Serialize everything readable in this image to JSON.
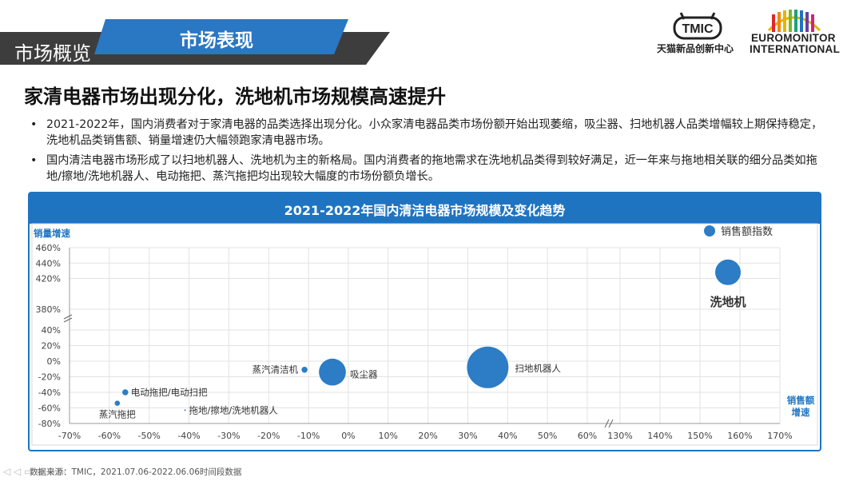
{
  "header": {
    "section_label": "市场概览",
    "tab_label": "市场表现",
    "logo_tmic_text": "TMIC",
    "logo_tmic_sub": "天猫新品创新中心",
    "logo_euro_line1": "EUROMONITOR",
    "logo_euro_line2": "INTERNATIONAL",
    "blue": "#2a77c3",
    "gray": "#3d3d3d"
  },
  "headline": "家清电器市场出现分化，洗地机市场规模高速提升",
  "bullets": [
    "2021-2022年，国内消费者对于家清电器的品类选择出现分化。小众家清电器品类市场份额开始出现萎缩，吸尘器、扫地机器人品类增幅较上期保持稳定，洗地机品类销售额、销量增速仍大幅领跑家清电器市场。",
    "国内清洁电器市场形成了以扫地机器人、洗地机为主的新格局。国内消费者的拖地需求在洗地机品类得到较好满足，近一年来与拖地相关联的细分品类如拖地/擦地/洗地机器人、电动拖把、蒸汽拖把均出现较大幅度的市场份额负增长。"
  ],
  "source": "数据来源：TMIC，2021.07.06-2022.06.06时间段数据",
  "nav": "◁ ◁ ▭ ⊕ ⊖ ▷",
  "chart_data": {
    "type": "scatter",
    "title": "2021-2022年国内清洁电器市场规模及变化趋势",
    "xlabel": "销售额增速",
    "ylabel": "销量增速",
    "legend": "销售额指数",
    "legend_position": "top-right",
    "bubble_color": "#2c7cc6",
    "x_ticks": [
      "-70%",
      "-60%",
      "-50%",
      "-40%",
      "-30%",
      "-20%",
      "-10%",
      "0%",
      "10%",
      "20%",
      "30%",
      "40%",
      "50%",
      "60%",
      "130%",
      "140%",
      "150%",
      "160%",
      "170%"
    ],
    "y_ticks": [
      "460%",
      "440%",
      "420%",
      "380%",
      "40%",
      "20%",
      "0%",
      "-20%",
      "-40%",
      "-60%",
      "-80%"
    ],
    "x_range_lower": [
      -70,
      60
    ],
    "x_range_upper": [
      130,
      170
    ],
    "y_range_lower": [
      -80,
      40
    ],
    "y_range_upper": [
      380,
      460
    ],
    "points": [
      {
        "name": "洗地机",
        "x": 157,
        "y": 428,
        "size": 36
      },
      {
        "name": "扫地机器人",
        "x": 35,
        "y": -8,
        "size": 95
      },
      {
        "name": "吸尘器",
        "x": -4,
        "y": -14,
        "size": 40
      },
      {
        "name": "蒸汽清洁机",
        "x": -11,
        "y": -11,
        "size": 2
      },
      {
        "name": "电动拖把/电动扫把",
        "x": -56,
        "y": -40,
        "size": 2
      },
      {
        "name": "蒸汽拖把",
        "x": -58,
        "y": -54,
        "size": 1.5
      },
      {
        "name": "拖地/擦地/洗地机器人",
        "x": -41,
        "y": -63,
        "size": 0.1
      }
    ]
  }
}
